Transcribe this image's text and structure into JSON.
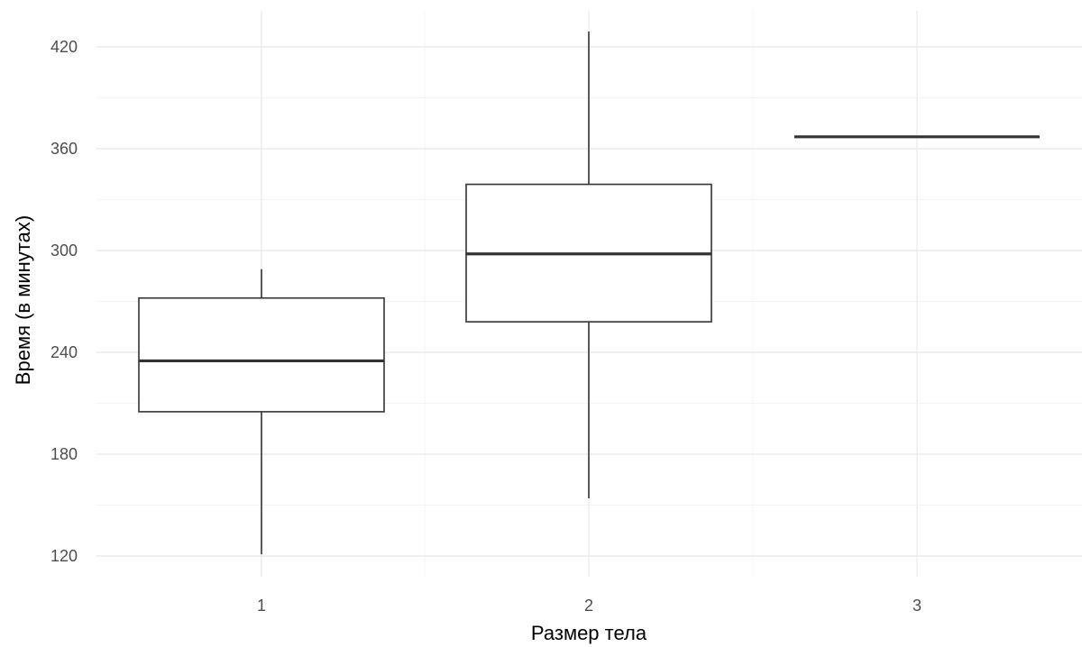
{
  "chart_data": {
    "type": "boxplot",
    "title": "",
    "xlabel": "Размер тела",
    "ylabel": "Время (в минутах)",
    "categories": [
      "1",
      "2",
      "3"
    ],
    "ylim": [
      110,
      430
    ],
    "yticks": [
      120,
      180,
      240,
      300,
      360,
      420
    ],
    "grid": true,
    "boxes": [
      {
        "category": "1",
        "min": 121,
        "q1": 205,
        "median": 235,
        "q3": 272,
        "max": 289
      },
      {
        "category": "2",
        "min": 154,
        "q1": 258,
        "median": 298,
        "q3": 339,
        "max": 429
      },
      {
        "category": "3",
        "min": 367,
        "q1": 367,
        "median": 367,
        "q3": 367,
        "max": 367
      }
    ],
    "colors": {
      "box_line": "#333333",
      "box_fill": "#ffffff",
      "grid": "#ebebeb",
      "tick_text": "#4d4d4d"
    }
  }
}
